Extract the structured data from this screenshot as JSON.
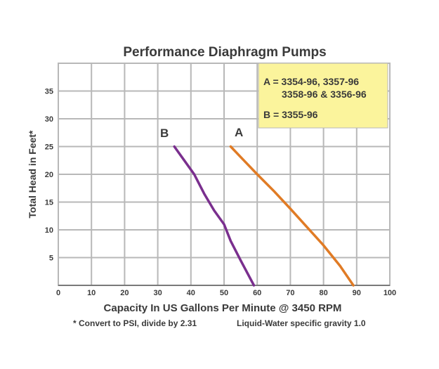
{
  "chart_data": {
    "type": "line",
    "title": "Performance Diaphragm Pumps",
    "xlabel": "Capacity In US Gallons Per Minute @ 3450 RPM",
    "ylabel": "Total Head in Feet*",
    "xlim": [
      0,
      100
    ],
    "ylim": [
      0,
      40
    ],
    "x_ticks": [
      "0",
      "10",
      "20",
      "30",
      "40",
      "50",
      "60",
      "70",
      "80",
      "90",
      "100"
    ],
    "y_ticks": [
      "5",
      "10",
      "15",
      "20",
      "25",
      "30",
      "35"
    ],
    "grid": true,
    "series": [
      {
        "name": "A",
        "color": "#e07b25",
        "points": [
          [
            52,
            25
          ],
          [
            56,
            22.5
          ],
          [
            60,
            20
          ],
          [
            65,
            17
          ],
          [
            70,
            13.8
          ],
          [
            75,
            10.5
          ],
          [
            80,
            7.2
          ],
          [
            85,
            3.5
          ],
          [
            89,
            0
          ]
        ]
      },
      {
        "name": "B",
        "color": "#7a2f8e",
        "points": [
          [
            35,
            25
          ],
          [
            38,
            22.5
          ],
          [
            41,
            20
          ],
          [
            44,
            16.5
          ],
          [
            47,
            13.5
          ],
          [
            50,
            11
          ],
          [
            52,
            8
          ],
          [
            55,
            4.5
          ],
          [
            59,
            0
          ]
        ]
      }
    ],
    "legend": {
      "position": "top-right",
      "background": "#fbf49c",
      "lines": [
        "A = 3354-96, 3357-96",
        "3358-96 & 3356-96",
        "B = 3355-96"
      ]
    },
    "footnote_left": "* Convert to PSI, divide by 2.31",
    "footnote_right": "Liquid-Water specific gravity 1.0",
    "grid_color": "#b8b8b8",
    "text_color": "#3a3a3a"
  }
}
